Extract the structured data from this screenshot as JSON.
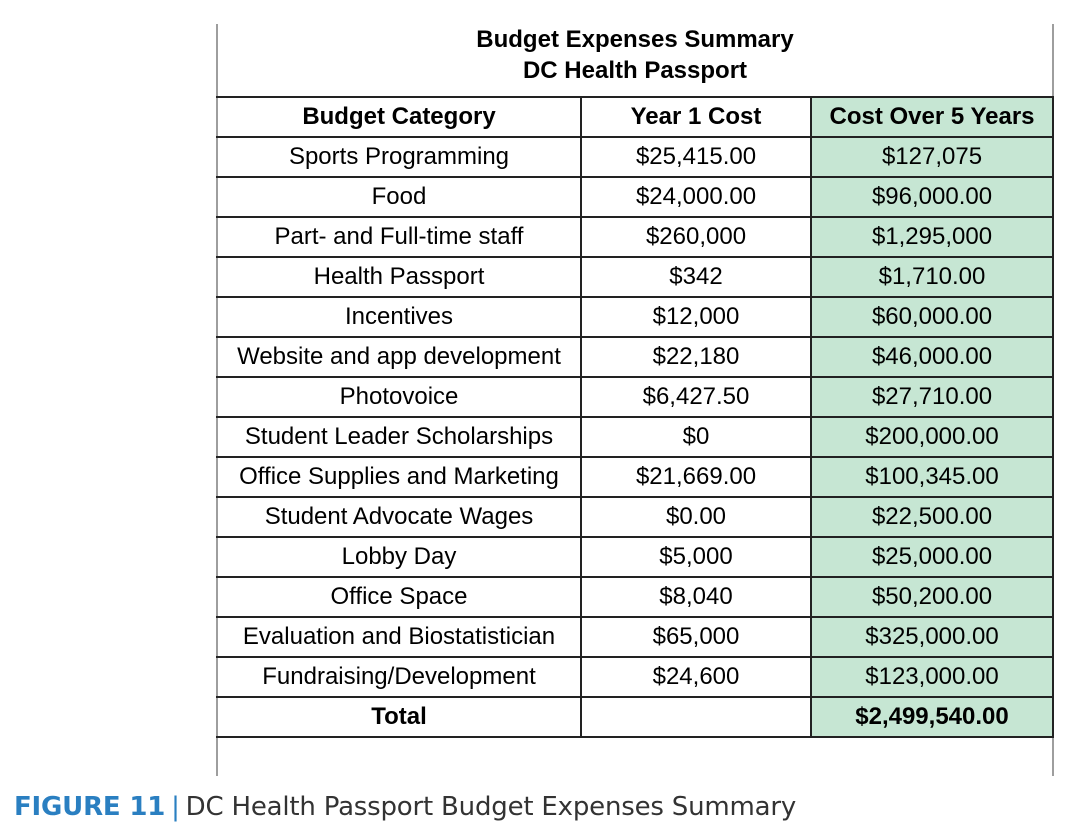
{
  "title": {
    "line1": "Budget Expenses Summary",
    "line2": "DC Health Passport"
  },
  "table": {
    "headers": [
      "Budget Category",
      "Year 1 Cost",
      "Cost Over 5 Years"
    ],
    "rows": [
      [
        "Sports Programming",
        "$25,415.00",
        "$127,075"
      ],
      [
        "Food",
        "$24,000.00",
        "$96,000.00"
      ],
      [
        "Part- and Full-time staff",
        "$260,000",
        "$1,295,000"
      ],
      [
        "Health Passport",
        "$342",
        "$1,710.00"
      ],
      [
        "Incentives",
        "$12,000",
        "$60,000.00"
      ],
      [
        "Website and app development",
        "$22,180",
        "$46,000.00"
      ],
      [
        "Photovoice",
        "$6,427.50",
        "$27,710.00"
      ],
      [
        "Student Leader Scholarships",
        "$0",
        "$200,000.00"
      ],
      [
        "Office Supplies and Marketing",
        "$21,669.00",
        "$100,345.00"
      ],
      [
        "Student Advocate Wages",
        "$0.00",
        "$22,500.00"
      ],
      [
        "Lobby Day",
        "$5,000",
        "$25,000.00"
      ],
      [
        "Office Space",
        "$8,040",
        "$50,200.00"
      ],
      [
        "Evaluation and Biostatistician",
        "$65,000",
        "$325,000.00"
      ],
      [
        "Fundraising/Development",
        "$24,600",
        "$123,000.00"
      ]
    ],
    "total": [
      "Total",
      "",
      "$2,499,540.00"
    ]
  },
  "caption": {
    "figure": "FIGURE 11",
    "separator": "|",
    "text": "DC Health Passport Budget Expenses Summary"
  },
  "colors": {
    "highlight_column": "#c6e6d3",
    "caption_accent": "#2a7fc1"
  }
}
